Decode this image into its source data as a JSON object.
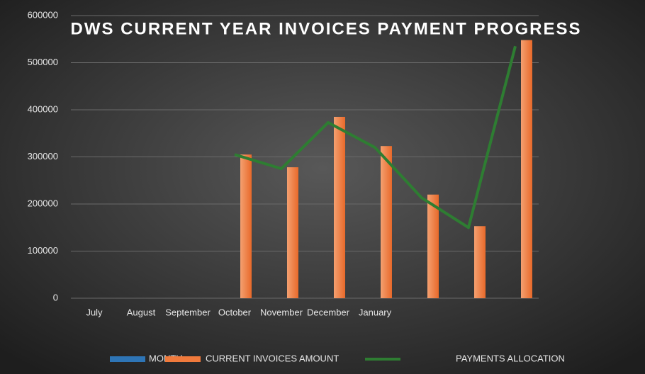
{
  "chart_data": {
    "type": "bar",
    "title": "DWS CURRENT YEAR INVOICES PAYMENT PROGRESS",
    "categories": [
      "July",
      "August",
      "September",
      "October",
      "November",
      "December",
      "January",
      null,
      null,
      null
    ],
    "series": [
      {
        "name": "MONTH",
        "color": "#2e75b6",
        "values": [
          null,
          null,
          null,
          null,
          null,
          null,
          null,
          null,
          null,
          null
        ]
      },
      {
        "name": "CURRENT INVOICES AMOUNT",
        "color": "#f07a3c",
        "values": [
          null,
          null,
          null,
          305000,
          278000,
          385000,
          323000,
          220000,
          153000,
          548000
        ]
      },
      {
        "name": "PAYMENTS ALLOCATION",
        "type": "line",
        "color": "#2e7d32",
        "values": [
          null,
          null,
          null,
          305000,
          275000,
          373000,
          320000,
          213000,
          150000,
          535000
        ]
      }
    ],
    "ylim": [
      0,
      600000
    ],
    "yticks": [
      0,
      100000,
      200000,
      300000,
      400000,
      500000,
      600000
    ],
    "grid": true,
    "legend": "bottom"
  }
}
